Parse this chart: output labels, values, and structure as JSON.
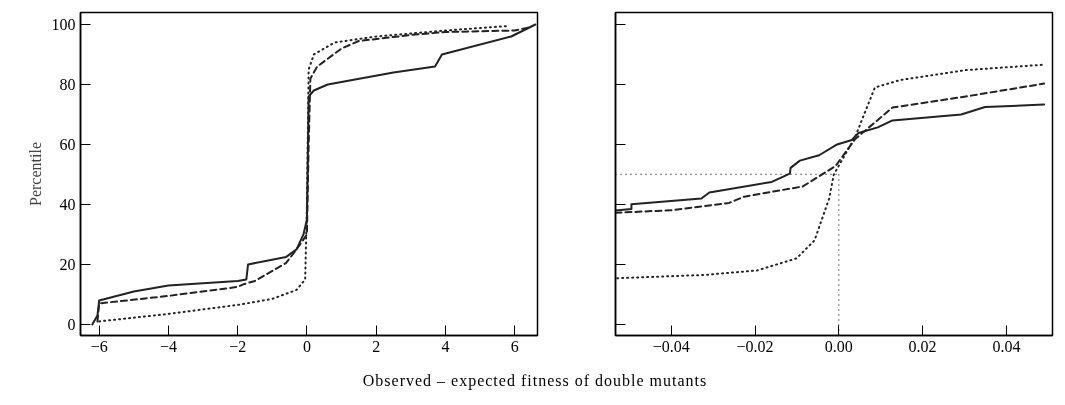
{
  "chart_data": [
    {
      "type": "line",
      "ylabel": "Percentile",
      "xlabel": "Observed – expected fitness of double mutants",
      "xlim": [
        -6.54,
        6.66
      ],
      "ylim": [
        -3.7,
        104
      ],
      "xticks": [
        {
          "value": -6,
          "label": "−6"
        },
        {
          "value": -4,
          "label": "−4"
        },
        {
          "value": -2,
          "label": "−2"
        },
        0,
        2,
        4,
        6
      ],
      "yticks": [
        0,
        20,
        40,
        60,
        80,
        100
      ],
      "grid": false,
      "marker": "none",
      "series": [
        {
          "color": "#222222",
          "line_style": "solid",
          "x": [
            -6.2,
            -6.05,
            -6.0,
            -5,
            -4,
            -2,
            -1.75,
            -1.7,
            -0.6,
            -0.3,
            -0.1,
            0,
            0.05,
            0.2,
            0.6,
            2.5,
            3.7,
            3.9,
            5.9,
            6.6
          ],
          "values": [
            0,
            3,
            8,
            11,
            13,
            14.5,
            15,
            20,
            22.5,
            25,
            30,
            35,
            76,
            78,
            80,
            84,
            86,
            90,
            96,
            100
          ]
        },
        {
          "color": "#222222",
          "line_style": "dashed",
          "x": [
            -6.05,
            -6,
            -4,
            -2,
            -1.8,
            -1.5,
            -0.6,
            -0.3,
            0,
            0.05,
            0.1,
            0.3,
            1,
            1.5,
            3,
            4,
            6,
            6.4
          ],
          "values": [
            1,
            7,
            9.5,
            12.5,
            13.5,
            14.5,
            20.5,
            25,
            30,
            60,
            82,
            86,
            92,
            94.5,
            96.5,
            97.5,
            98,
            99
          ]
        },
        {
          "color": "#222222",
          "line_style": "dotted",
          "x": [
            -6,
            -4,
            -2,
            -1,
            -0.3,
            -0.05,
            0,
            0.05,
            0.2,
            0.8,
            2,
            4,
            5.8
          ],
          "values": [
            1,
            3.5,
            6.5,
            8.5,
            11.5,
            15,
            40,
            85,
            90,
            94,
            96,
            98,
            99.5
          ]
        }
      ]
    },
    {
      "type": "line",
      "xlim": [
        -0.0533,
        0.051
      ],
      "ylim": [
        -3.7,
        104
      ],
      "xticks": [
        {
          "value": -0.04,
          "label": "−0.04"
        },
        {
          "value": -0.02,
          "label": "−0.02"
        },
        {
          "value": 0,
          "label": "0.00"
        },
        {
          "value": 0.02,
          "label": "0.02"
        },
        {
          "value": 0.04,
          "label": "0.04"
        }
      ],
      "yticks": [
        0,
        20,
        40,
        60,
        80,
        100
      ],
      "tick_labels": "x",
      "grid": false,
      "marker": "none",
      "ref_lines": [
        {
          "axis": "y",
          "value": 50,
          "line_style": "dotted",
          "color": "#222222"
        },
        {
          "axis": "x",
          "value": 0,
          "line_style": "dotted",
          "color": "#222222"
        }
      ],
      "series": [
        {
          "color": "#222222",
          "line_style": "solid",
          "x": [
            -0.0533,
            -0.0495,
            -0.0495,
            -0.0328,
            -0.0309,
            -0.016,
            -0.0117,
            -0.0115,
            -0.0093,
            -0.0047,
            -0.0004,
            0.0031,
            0.0047,
            0.0093,
            0.0128,
            0.0292,
            0.0349,
            0.049
          ],
          "values": [
            38,
            38.5,
            40.1,
            42,
            44,
            47.5,
            50.3,
            52.2,
            54.6,
            56.4,
            60,
            61.5,
            63.8,
            65.7,
            68,
            70,
            72.5,
            73.3
          ]
        },
        {
          "color": "#222222",
          "line_style": "dashed",
          "x": [
            -0.0533,
            -0.0398,
            -0.0262,
            -0.0226,
            -0.0086,
            -0.0008,
            0.0039,
            0.0128,
            0.0303,
            0.049
          ],
          "values": [
            37.2,
            38.1,
            40.5,
            42.6,
            46,
            52.8,
            61.8,
            72.3,
            76,
            80.3
          ]
        },
        {
          "color": "#222222",
          "line_style": "dotted",
          "x": [
            -0.0529,
            -0.032,
            -0.0195,
            -0.0101,
            -0.0058,
            -0.0023,
            -0.0012,
            0.0039,
            0.0086,
            0.0147,
            0.0303,
            0.049
          ],
          "values": [
            15.4,
            16.5,
            18,
            22,
            28,
            42,
            50,
            62.5,
            79,
            81.5,
            84.8,
            86.6
          ]
        }
      ]
    }
  ]
}
